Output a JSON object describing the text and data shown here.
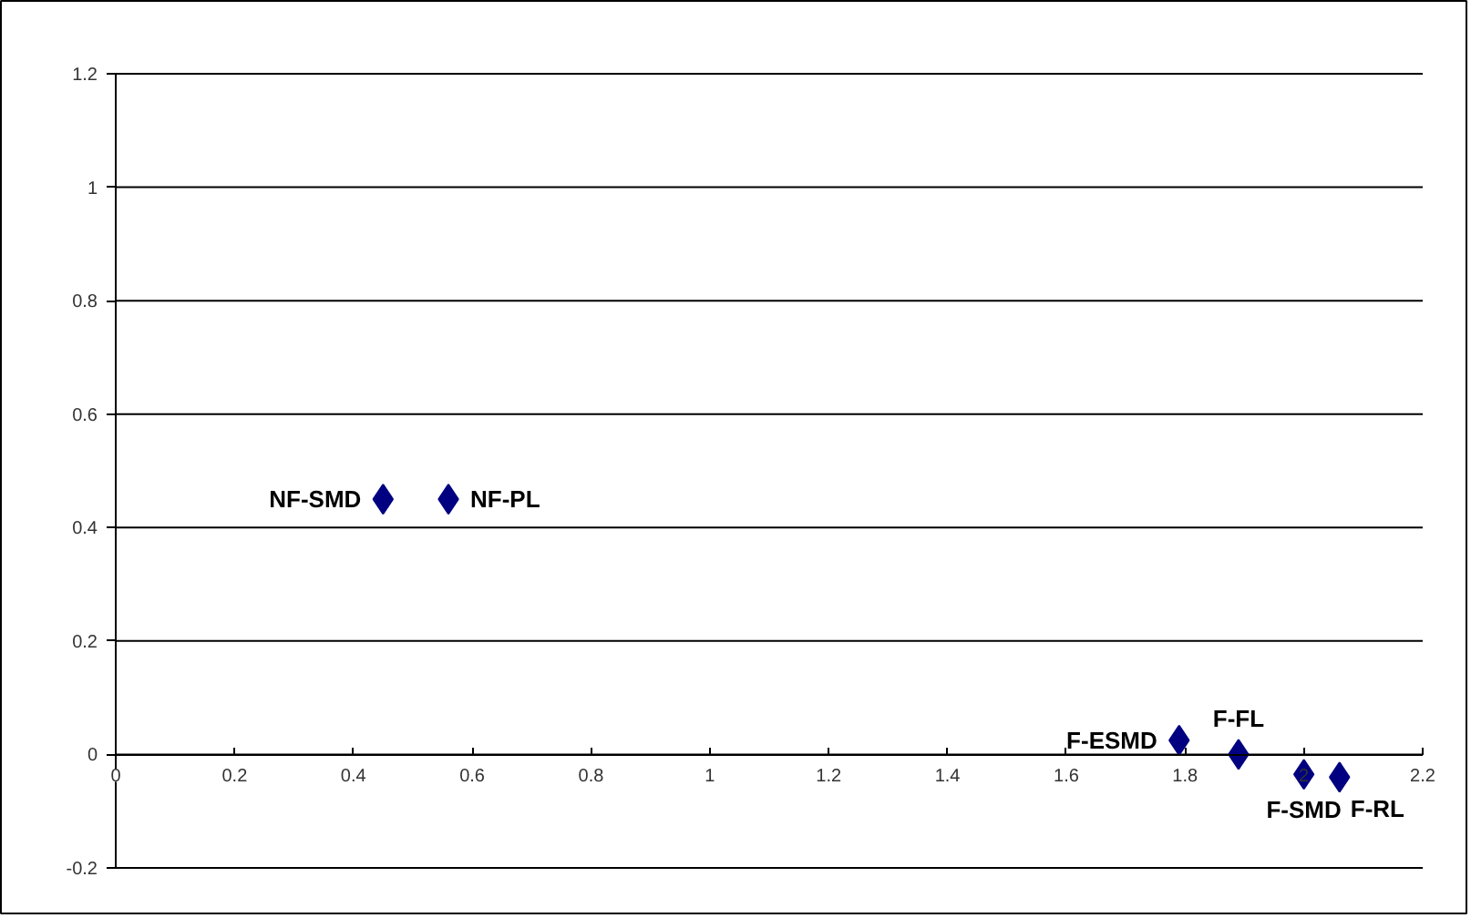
{
  "chart_data": {
    "type": "scatter",
    "marker": "diamond",
    "grid": "y",
    "x": [
      0.45,
      0.56,
      1.79,
      1.89,
      2.0,
      2.06
    ],
    "values": [
      0.45,
      0.45,
      0.025,
      0.0,
      -0.035,
      -0.04
    ],
    "color": "#000080",
    "xlim": [
      0,
      2.2
    ],
    "xticks": [
      0,
      0.2,
      0.4,
      0.6,
      0.8,
      1,
      1.2,
      1.4,
      1.6,
      1.8,
      2,
      2.2
    ],
    "ylim": [
      -0.2,
      1.2
    ],
    "yticks": [
      -0.2,
      0,
      0.2,
      0.4,
      0.6,
      0.8,
      1,
      1.2
    ],
    "annotations": [
      {
        "text": "NF-SMD",
        "x": 0.45,
        "y": 0.45
      },
      {
        "text": "NF-PL",
        "x": 0.56,
        "y": 0.45
      },
      {
        "text": "F-ESMD",
        "x": 1.79,
        "y": 0.025
      },
      {
        "text": "F-FL",
        "x": 1.89,
        "y": 0.0
      },
      {
        "text": "F-SMD",
        "x": 2.0,
        "y": -0.035
      },
      {
        "text": "F-RL",
        "x": 2.06,
        "y": -0.04
      }
    ]
  }
}
